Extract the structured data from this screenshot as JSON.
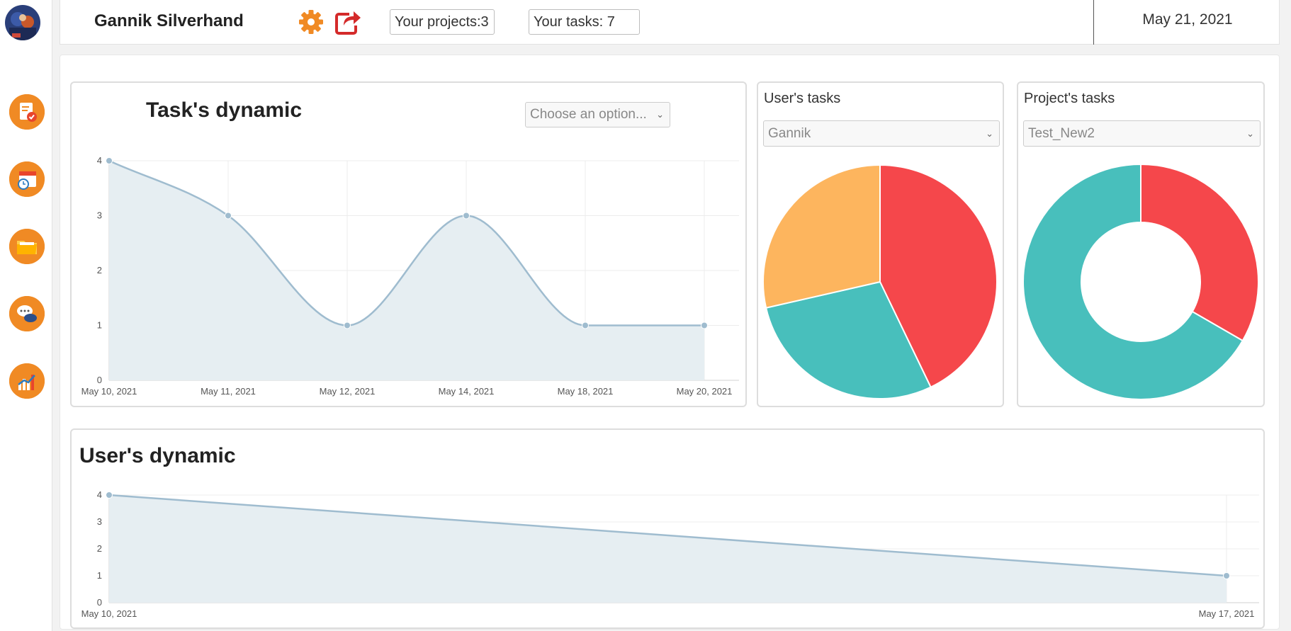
{
  "user": {
    "name": "Gannik Silverhand"
  },
  "header": {
    "projects_label": "Your projects:3",
    "tasks_label": "Your tasks: 7",
    "date": "May 21, 2021"
  },
  "sidebar": {
    "items": [
      {
        "icon": "task-list-icon"
      },
      {
        "icon": "calendar-clock-icon"
      },
      {
        "icon": "folder-icon"
      },
      {
        "icon": "chat-bubbles-icon"
      },
      {
        "icon": "bar-chart-icon"
      }
    ]
  },
  "task_dynamic": {
    "title": "Task's dynamic",
    "select_placeholder": "Choose an option..."
  },
  "users_tasks": {
    "title": "User's tasks",
    "selected": "Gannik"
  },
  "projects_tasks": {
    "title": "Project's tasks",
    "selected": "Test_New2"
  },
  "user_dynamic": {
    "title": "User's dynamic"
  },
  "colors": {
    "accent": "#f08a24",
    "line": "#9fbccf",
    "fill": "#e6eef2",
    "red": "#f5474b",
    "teal": "#48bfbc",
    "orange": "#fdb55e"
  },
  "chart_data": [
    {
      "type": "line",
      "x": [
        "May 10, 2021",
        "May 11, 2021",
        "May 12, 2021",
        "May 14, 2021",
        "May 18, 2021",
        "May 20, 2021"
      ],
      "series": [
        {
          "values": [
            4,
            3,
            1,
            3,
            1,
            1
          ]
        }
      ],
      "ylim": [
        0,
        4
      ],
      "yticks": [
        0,
        1,
        2,
        3,
        4
      ],
      "grid": true
    },
    {
      "type": "pie",
      "slices": [
        {
          "value": 3,
          "color": "#f5474b"
        },
        {
          "value": 2,
          "color": "#48bfbc"
        },
        {
          "value": 2,
          "color": "#fdb55e"
        }
      ]
    },
    {
      "type": "pie",
      "donut": true,
      "slices": [
        {
          "value": 1,
          "color": "#f5474b"
        },
        {
          "value": 2,
          "color": "#48bfbc"
        }
      ]
    },
    {
      "type": "line",
      "x": [
        "May 10, 2021",
        "May 17, 2021"
      ],
      "series": [
        {
          "values": [
            4,
            1
          ]
        }
      ],
      "ylim": [
        0,
        4
      ],
      "yticks": [
        0,
        1,
        2,
        3,
        4
      ],
      "grid": true
    }
  ]
}
